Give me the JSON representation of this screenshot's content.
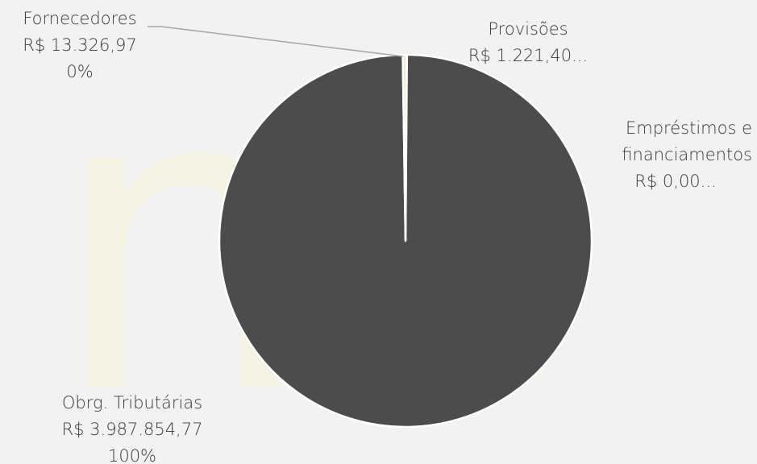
{
  "chart_data": {
    "type": "pie",
    "title": "",
    "colors": {
      "background": "#f2f2f2",
      "watermark": "#f5f3e4",
      "main_slice": "#4c4c4c",
      "slice_border": "#ffffff",
      "leader_line": "#a6a6a6",
      "small_slice": "#f0ebc8",
      "label_text": "#3a3a3a"
    },
    "watermark": "ne",
    "slices": [
      {
        "name": "Obrg. Tributárias",
        "value": 3987854.77,
        "value_label": "R$ 3.987.854,77",
        "percent_label": "100%"
      },
      {
        "name": "Fornecedores",
        "value": 13326.97,
        "value_label": "R$ 13.326,97",
        "percent_label": "0%"
      },
      {
        "name": "Provisões",
        "value": 1221.4,
        "value_label": "R$ 1.221,40..."
      },
      {
        "name": "Empréstimos e financiamentos",
        "value": 0.001,
        "value_label": "R$ 0,00..."
      }
    ]
  }
}
